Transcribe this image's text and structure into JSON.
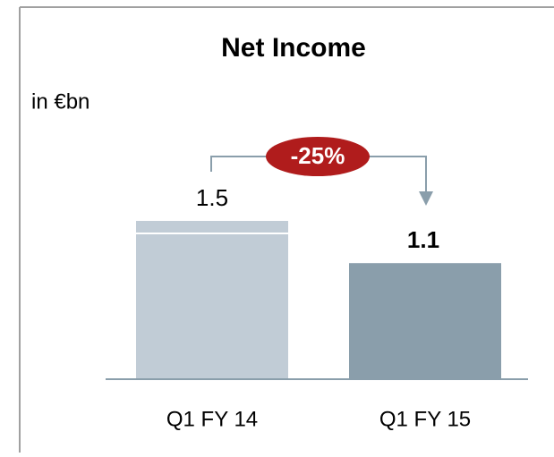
{
  "chart_data": {
    "type": "bar",
    "title": "Net Income",
    "subtitle": "in €bn",
    "categories": [
      "Q1 FY 14",
      "Q1 FY 15"
    ],
    "values": [
      1.5,
      1.1
    ],
    "colors": [
      "#c1ccd6",
      "#8a9eab"
    ],
    "annotation": "-25%"
  }
}
